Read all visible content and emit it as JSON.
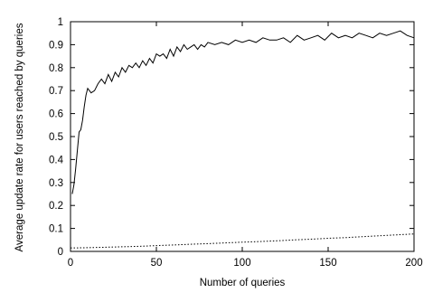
{
  "chart_data": {
    "type": "line",
    "title": "",
    "xlabel": "Number of queries",
    "ylabel": "Average update rate for users reached by queries",
    "xlim": [
      0,
      200
    ],
    "ylim": [
      0,
      1
    ],
    "xticks": [
      0,
      50,
      100,
      150,
      200
    ],
    "yticks": [
      0,
      0.1,
      0.2,
      0.3,
      0.4,
      0.5,
      0.6,
      0.7,
      0.8,
      0.9,
      1
    ],
    "xtick_labels": [
      "0",
      "50",
      "100",
      "150",
      "200"
    ],
    "ytick_labels": [
      "0",
      "0.1",
      "0.2",
      "0.3",
      "0.4",
      "0.5",
      "0.6",
      "0.7",
      "0.8",
      "0.9",
      "1"
    ],
    "grid": false,
    "legend": "none",
    "series": [
      {
        "style": "solid",
        "color": "#000000",
        "x": [
          1,
          2,
          3,
          4,
          5,
          6,
          7,
          8,
          9,
          10,
          12,
          14,
          16,
          18,
          20,
          22,
          24,
          26,
          28,
          30,
          32,
          34,
          36,
          38,
          40,
          42,
          44,
          46,
          48,
          50,
          52,
          54,
          56,
          58,
          60,
          62,
          64,
          66,
          68,
          70,
          72,
          74,
          76,
          78,
          80,
          84,
          88,
          92,
          96,
          100,
          104,
          108,
          112,
          116,
          120,
          124,
          128,
          132,
          136,
          140,
          144,
          148,
          152,
          156,
          160,
          164,
          168,
          172,
          176,
          180,
          184,
          188,
          192,
          196,
          200
        ],
        "y": [
          0.25,
          0.29,
          0.36,
          0.44,
          0.52,
          0.53,
          0.57,
          0.63,
          0.68,
          0.71,
          0.69,
          0.7,
          0.73,
          0.75,
          0.73,
          0.77,
          0.74,
          0.78,
          0.76,
          0.8,
          0.78,
          0.81,
          0.8,
          0.82,
          0.8,
          0.83,
          0.81,
          0.84,
          0.82,
          0.86,
          0.85,
          0.86,
          0.84,
          0.88,
          0.85,
          0.89,
          0.87,
          0.9,
          0.88,
          0.89,
          0.9,
          0.88,
          0.9,
          0.89,
          0.91,
          0.9,
          0.91,
          0.9,
          0.92,
          0.91,
          0.92,
          0.91,
          0.93,
          0.92,
          0.92,
          0.93,
          0.91,
          0.94,
          0.92,
          0.93,
          0.94,
          0.92,
          0.95,
          0.93,
          0.94,
          0.93,
          0.95,
          0.94,
          0.93,
          0.95,
          0.94,
          0.95,
          0.96,
          0.94,
          0.93
        ]
      },
      {
        "style": "dotted",
        "color": "#000000",
        "x": [
          0,
          10,
          20,
          30,
          40,
          50,
          60,
          70,
          80,
          90,
          100,
          110,
          120,
          130,
          140,
          150,
          160,
          170,
          180,
          190,
          200
        ],
        "y": [
          0.015,
          0.016,
          0.018,
          0.02,
          0.022,
          0.025,
          0.028,
          0.031,
          0.034,
          0.037,
          0.04,
          0.043,
          0.046,
          0.05,
          0.053,
          0.057,
          0.06,
          0.064,
          0.068,
          0.072,
          0.076
        ]
      }
    ]
  }
}
